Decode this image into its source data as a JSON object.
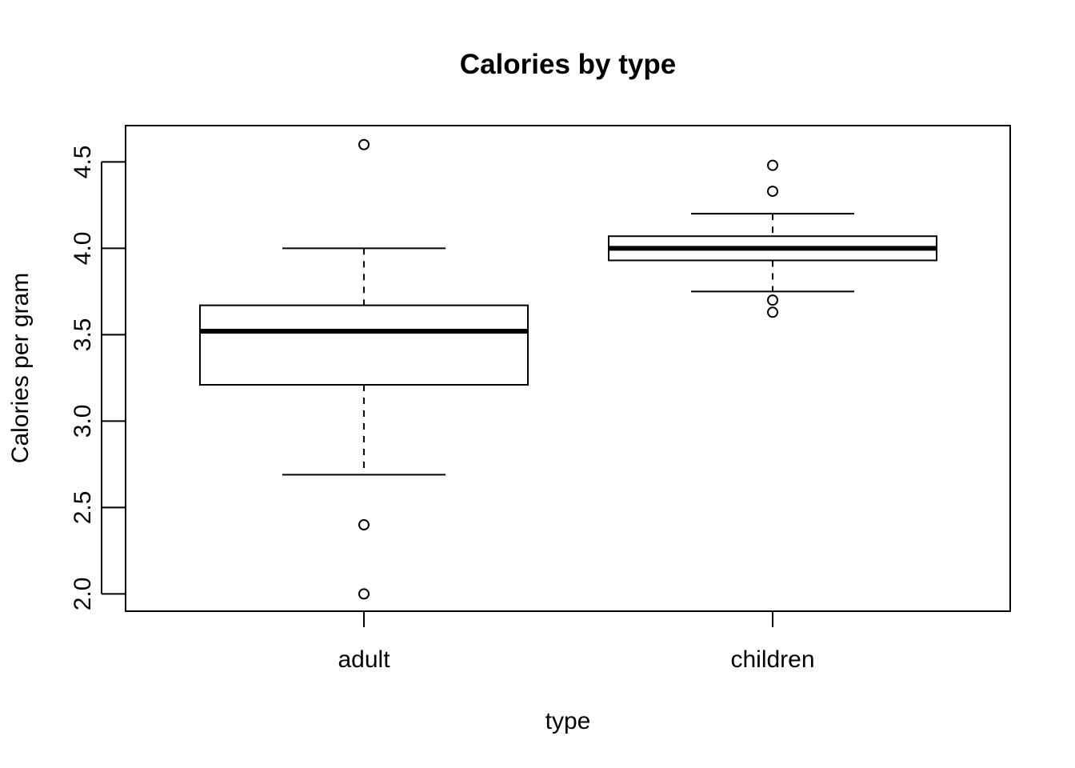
{
  "chart_data": {
    "type": "box",
    "title": "Calories by type",
    "xlabel": "type",
    "ylabel": "Calories per gram",
    "ylim": [
      1.9,
      4.71
    ],
    "y_ticks": [
      "2.0",
      "2.5",
      "3.0",
      "3.5",
      "4.0",
      "4.5"
    ],
    "y_tick_values": [
      2.0,
      2.5,
      3.0,
      3.5,
      4.0,
      4.5
    ],
    "categories": [
      "adult",
      "children"
    ],
    "boxes": [
      {
        "category": "adult",
        "whisker_low": 2.69,
        "q1": 3.21,
        "median": 3.52,
        "q3": 3.67,
        "whisker_high": 4.0,
        "outliers": [
          4.6,
          2.4,
          2.0
        ]
      },
      {
        "category": "children",
        "whisker_low": 3.75,
        "q1": 3.93,
        "median": 4.0,
        "q3": 4.07,
        "whisker_high": 4.2,
        "outliers": [
          4.48,
          4.33,
          3.7,
          3.63
        ]
      }
    ],
    "grid": false,
    "legend": "none"
  }
}
